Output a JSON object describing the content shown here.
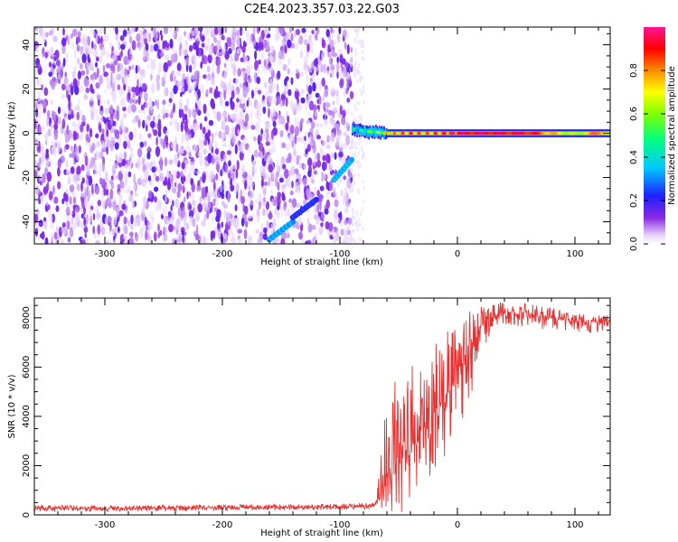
{
  "title": "C2E4.2023.357.03.22.G03",
  "chart_data": [
    {
      "type": "heatmap",
      "xlabel": "Height of straight line (km)",
      "ylabel": "Frequency (Hz)",
      "xlim": [
        -360,
        130
      ],
      "ylim": [
        -50,
        48
      ],
      "x_ticks": [
        -300,
        -200,
        -100,
        0,
        100
      ],
      "x_tick_labels": [
        "-300",
        "-200",
        "-100",
        "0",
        "100"
      ],
      "y_ticks": [
        -40,
        -20,
        0,
        20,
        40
      ],
      "y_tick_labels": [
        "-40",
        "-20",
        "0",
        "20",
        "40"
      ],
      "colorbar": {
        "label": "Normalized spectral amplitude",
        "range": [
          0,
          1
        ],
        "ticks": [
          0.0,
          0.2,
          0.4,
          0.6,
          0.8
        ],
        "tick_labels": [
          "0.0",
          "0.2",
          "0.4",
          "0.6",
          "0.8"
        ],
        "colormap": "rainbow"
      },
      "noise_region_x": [
        -360,
        -90
      ],
      "carrier": {
        "x": [
          -90,
          -80,
          -70,
          -60,
          -50,
          -40,
          -30,
          -20,
          -10,
          0,
          20,
          40,
          60,
          80,
          100,
          120,
          130
        ],
        "freq": [
          2,
          1,
          0.5,
          0,
          0,
          0,
          0,
          0,
          0,
          0,
          0,
          0,
          0,
          0,
          0,
          0,
          0
        ],
        "amplitude": [
          0.35,
          0.45,
          0.55,
          0.7,
          0.75,
          0.8,
          0.75,
          0.78,
          0.85,
          0.9,
          0.92,
          0.9,
          0.9,
          0.75,
          0.6,
          0.85,
          0.6
        ]
      },
      "doppler_streaks": [
        {
          "x": [
            -160,
            -140
          ],
          "freq": [
            -48,
            -40
          ],
          "amplitude": 0.3
        },
        {
          "x": [
            -140,
            -120
          ],
          "freq": [
            -38,
            -30
          ],
          "amplitude": 0.2
        },
        {
          "x": [
            -105,
            -90
          ],
          "freq": [
            -21,
            -12
          ],
          "amplitude": 0.32
        }
      ]
    },
    {
      "type": "line",
      "xlabel": "Height of straight line (km)",
      "ylabel": "SNR (10 * v/v)",
      "xlim": [
        -360,
        130
      ],
      "ylim": [
        0,
        8800
      ],
      "x_ticks": [
        -300,
        -200,
        -100,
        0,
        100
      ],
      "x_tick_labels": [
        "-300",
        "-200",
        "-100",
        "0",
        "100"
      ],
      "y_ticks": [
        0,
        2000,
        4000,
        6000,
        8000
      ],
      "y_tick_labels": [
        "0",
        "2000",
        "4000",
        "6000",
        "8000"
      ],
      "color": "#e83030",
      "envelope": {
        "x": [
          -360,
          -300,
          -200,
          -100,
          -70,
          -60,
          -50,
          -40,
          -30,
          -20,
          -10,
          0,
          10,
          20,
          30,
          40,
          60,
          80,
          100,
          130
        ],
        "low": [
          150,
          150,
          180,
          200,
          250,
          0,
          0,
          500,
          1000,
          1600,
          2400,
          2900,
          4000,
          6500,
          7600,
          7700,
          7600,
          7500,
          7400,
          7300
        ],
        "high": [
          400,
          380,
          420,
          450,
          500,
          4800,
          5800,
          6300,
          6800,
          7200,
          7500,
          7800,
          8300,
          8500,
          8600,
          8700,
          8600,
          8400,
          8200,
          8100
        ],
        "center": [
          280,
          270,
          300,
          320,
          380,
          1500,
          2400,
          2800,
          3600,
          4200,
          4800,
          5400,
          6500,
          7600,
          8000,
          8200,
          8150,
          8000,
          7900,
          7800
        ]
      }
    }
  ]
}
